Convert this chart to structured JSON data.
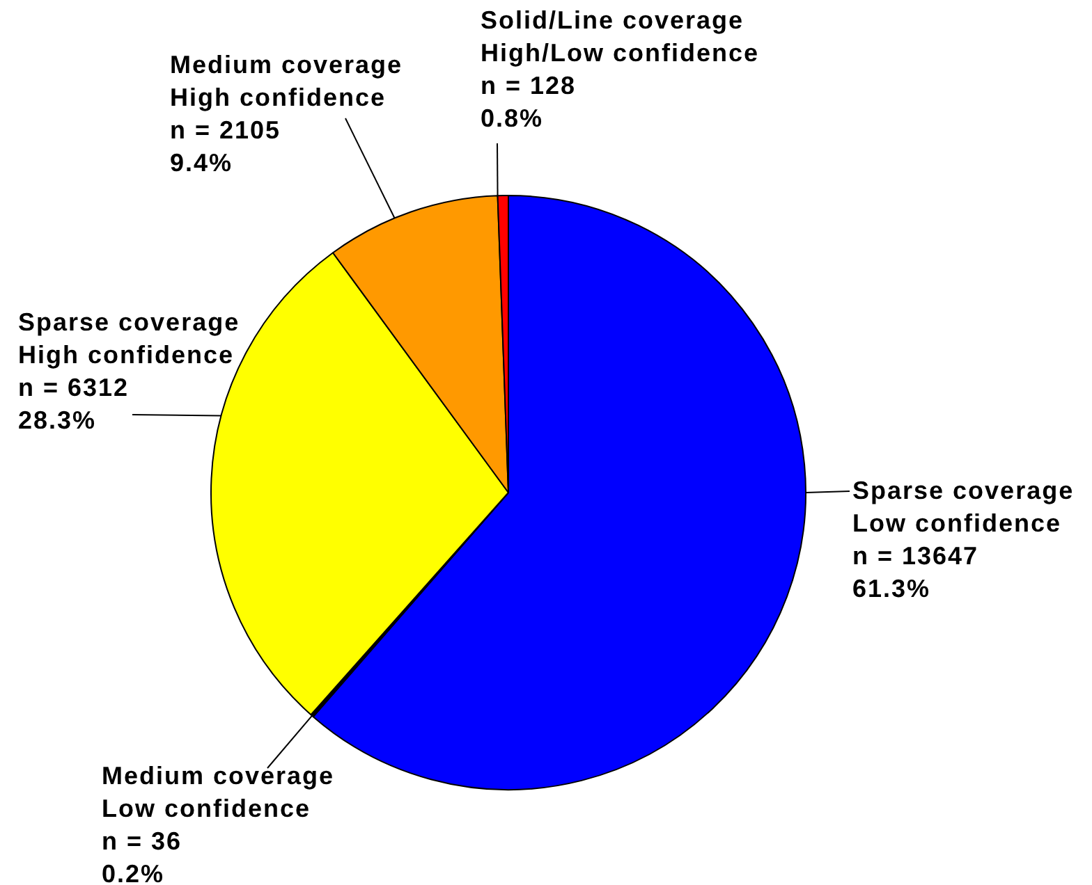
{
  "chart_data": {
    "type": "pie",
    "categories": [
      "Sparse coverage\nLow confidence",
      "Medium coverage\nLow confidence",
      "Sparse coverage\nHigh confidence",
      "Medium coverage\nHigh confidence",
      "Solid/Line coverage\nHigh/Low confidence"
    ],
    "values": [
      13647,
      36,
      6312,
      2105,
      128
    ],
    "colors": [
      "#0000ff",
      "#000000",
      "#ffff00",
      "#ff9900",
      "#ff0000"
    ],
    "value_labels": [
      "n = 13647\n61.3%",
      "n = 36\n0.2%",
      "n = 6312\n28.3%",
      "n = 2105\n9.4%",
      "n = 128\n0.8%"
    ],
    "legend": false
  }
}
